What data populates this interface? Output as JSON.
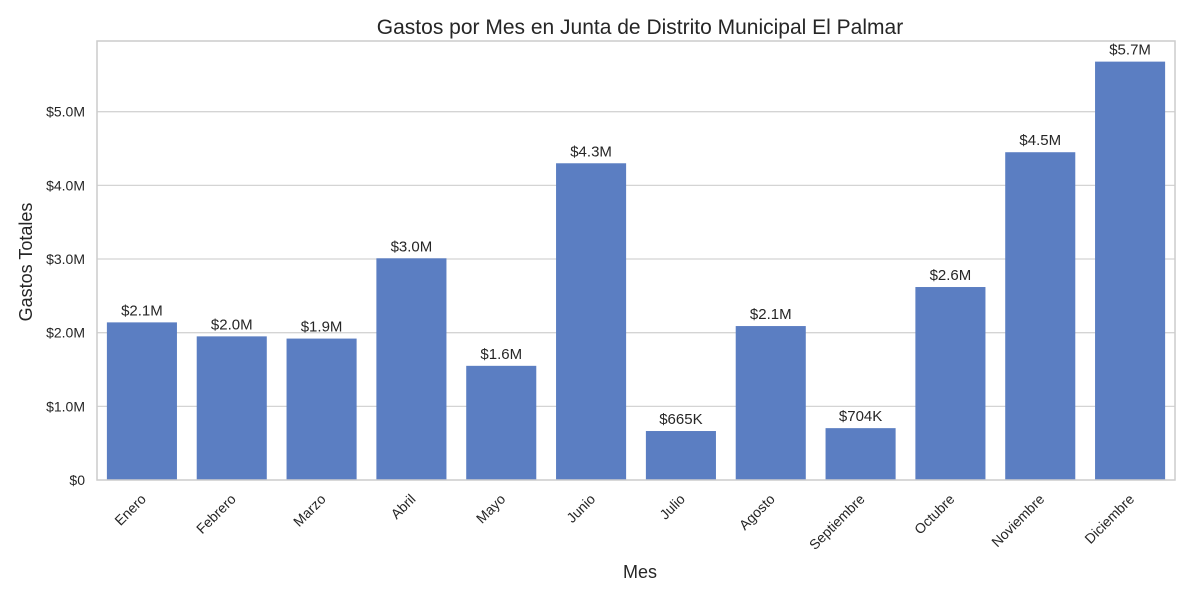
{
  "chart_data": {
    "type": "bar",
    "title": "Gastos por Mes en Junta de Distrito Municipal El Palmar",
    "xlabel": "Mes",
    "ylabel": "Gastos Totales",
    "categories": [
      "Enero",
      "Febrero",
      "Marzo",
      "Abril",
      "Mayo",
      "Junio",
      "Julio",
      "Agosto",
      "Septiembre",
      "Octubre",
      "Noviembre",
      "Diciembre"
    ],
    "values": [
      2140000,
      1950000,
      1920000,
      3010000,
      1550000,
      4300000,
      665000,
      2090000,
      704000,
      2620000,
      4450000,
      5680000
    ],
    "data_labels": [
      "$2.1M",
      "$2.0M",
      "$1.9M",
      "$3.0M",
      "$1.6M",
      "$4.3M",
      "$665K",
      "$2.1M",
      "$704K",
      "$2.6M",
      "$4.5M",
      "$5.7M"
    ],
    "ylim": [
      0,
      5960000
    ],
    "yticks": [
      0,
      1000000,
      2000000,
      3000000,
      4000000,
      5000000
    ],
    "ytick_labels": [
      "$0",
      "$1.0M",
      "$2.0M",
      "$3.0M",
      "$4.0M",
      "$5.0M"
    ],
    "grid": "horizontal",
    "colors": {
      "bar": "#5b7ec2",
      "grid": "#d4d4d4",
      "frame": "#cccccc",
      "text": "#262626"
    }
  }
}
